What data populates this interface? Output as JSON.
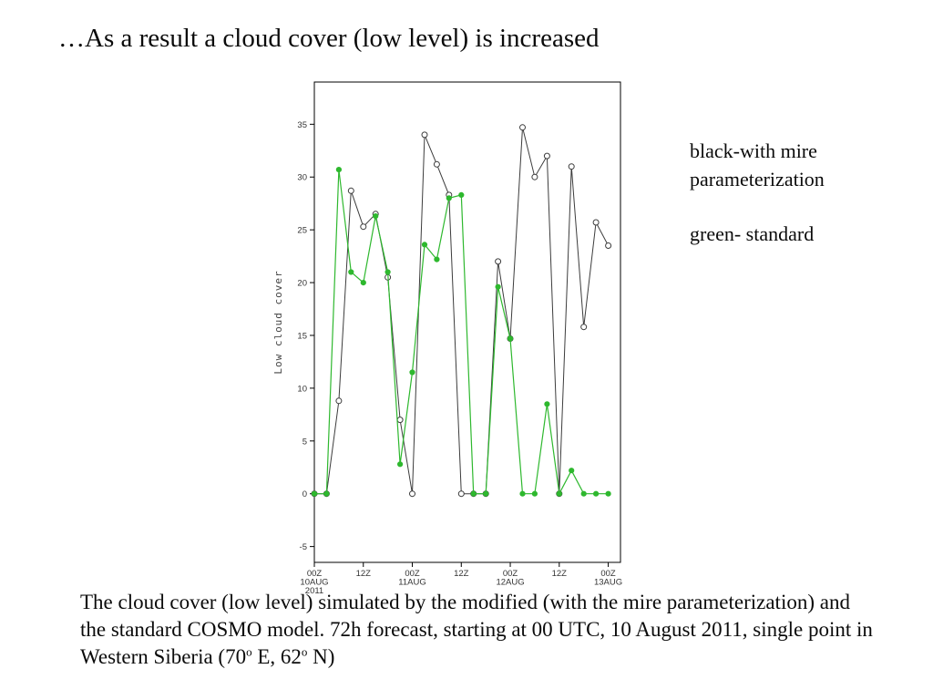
{
  "slide": {
    "title": "…As a result a cloud cover (low level) is increased",
    "legend_note": {
      "line1": "black-with mire",
      "line2": "parameterization",
      "line3": "green-  standard"
    },
    "caption": {
      "part1": "The cloud cover (low level) simulated by the modified (with the mire parameterization) and the standard COSMO model. 72h forecast, starting at 00 UTC, 10 August 2011, single point in Western Siberia (70",
      "sup1": "o",
      "part2": " E, 62",
      "sup2": "o",
      "part3": " N)"
    }
  },
  "chart_data": {
    "type": "line",
    "title": "",
    "xlabel": "",
    "ylabel": "Low cloud cover",
    "xlim": [
      0,
      75
    ],
    "ylim": [
      -6.5,
      39
    ],
    "y_ticks": [
      -5,
      0,
      5,
      10,
      15,
      20,
      25,
      30,
      35
    ],
    "x_ticks": [
      {
        "hour": 0,
        "lines": [
          "00Z",
          "10AUG",
          "2011"
        ]
      },
      {
        "hour": 12,
        "lines": [
          "12Z"
        ]
      },
      {
        "hour": 24,
        "lines": [
          "00Z",
          "11AUG"
        ]
      },
      {
        "hour": 36,
        "lines": [
          "12Z"
        ]
      },
      {
        "hour": 48,
        "lines": [
          "00Z",
          "12AUG"
        ]
      },
      {
        "hour": 60,
        "lines": [
          "12Z"
        ]
      },
      {
        "hour": 72,
        "lines": [
          "00Z",
          "13AUG"
        ]
      }
    ],
    "x_hours": [
      0,
      3,
      6,
      9,
      12,
      15,
      18,
      21,
      24,
      27,
      30,
      33,
      36,
      39,
      42,
      45,
      48,
      51,
      54,
      57,
      60,
      63,
      66,
      69,
      72
    ],
    "series": [
      {
        "name": "with mire parameterization",
        "color": "#3c3c3c",
        "marker": "open-circle",
        "values": [
          0,
          0,
          8.8,
          28.7,
          25.3,
          26.5,
          20.5,
          7,
          0,
          34,
          31.2,
          28.3,
          0,
          0,
          0,
          22,
          14.7,
          34.7,
          30,
          32,
          0,
          31,
          15.8,
          25.7,
          23.5
        ]
      },
      {
        "name": "standard",
        "color": "#2eb82e",
        "marker": "filled-circle",
        "values": [
          0,
          0,
          30.7,
          21,
          20,
          26.3,
          21,
          2.8,
          11.5,
          23.6,
          22.2,
          28,
          28.3,
          0,
          0,
          19.6,
          14.7,
          0,
          0,
          8.5,
          0,
          2.2,
          0,
          0,
          0
        ]
      }
    ]
  }
}
